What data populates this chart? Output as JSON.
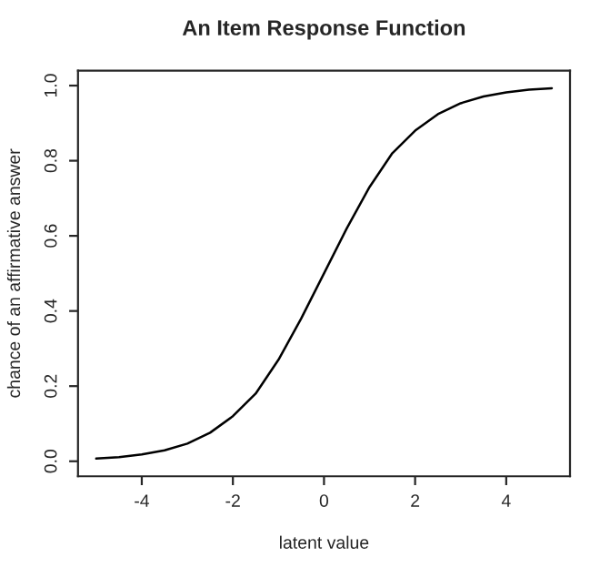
{
  "chart_data": {
    "type": "line",
    "title": "An Item Response Function",
    "xlabel": "latent value",
    "ylabel": "chance of an affirmative answer",
    "x": [
      -5,
      -4.5,
      -4,
      -3.5,
      -3,
      -2.5,
      -2,
      -1.5,
      -1,
      -0.5,
      0,
      0.5,
      1,
      1.5,
      2,
      2.5,
      3,
      3.5,
      4,
      4.5,
      5
    ],
    "series": [
      {
        "color": "#000000",
        "values": [
          0.007,
          0.011,
          0.018,
          0.029,
          0.047,
          0.076,
          0.12,
          0.18,
          0.27,
          0.38,
          0.5,
          0.62,
          0.73,
          0.82,
          0.88,
          0.924,
          0.953,
          0.971,
          0.982,
          0.989,
          0.993
        ]
      }
    ],
    "xlim": [
      -5.4,
      5.4
    ],
    "ylim": [
      -0.04,
      1.04
    ],
    "xticks": [
      -4,
      -2,
      0,
      2,
      4
    ],
    "yticks": [
      {
        "value": 0,
        "label": "0.0"
      },
      0.2,
      0.4,
      0.6,
      0.8,
      {
        "value": 1,
        "label": "1.0"
      }
    ],
    "grid": false,
    "legend": false,
    "marker": "none",
    "line_style": "solid"
  }
}
